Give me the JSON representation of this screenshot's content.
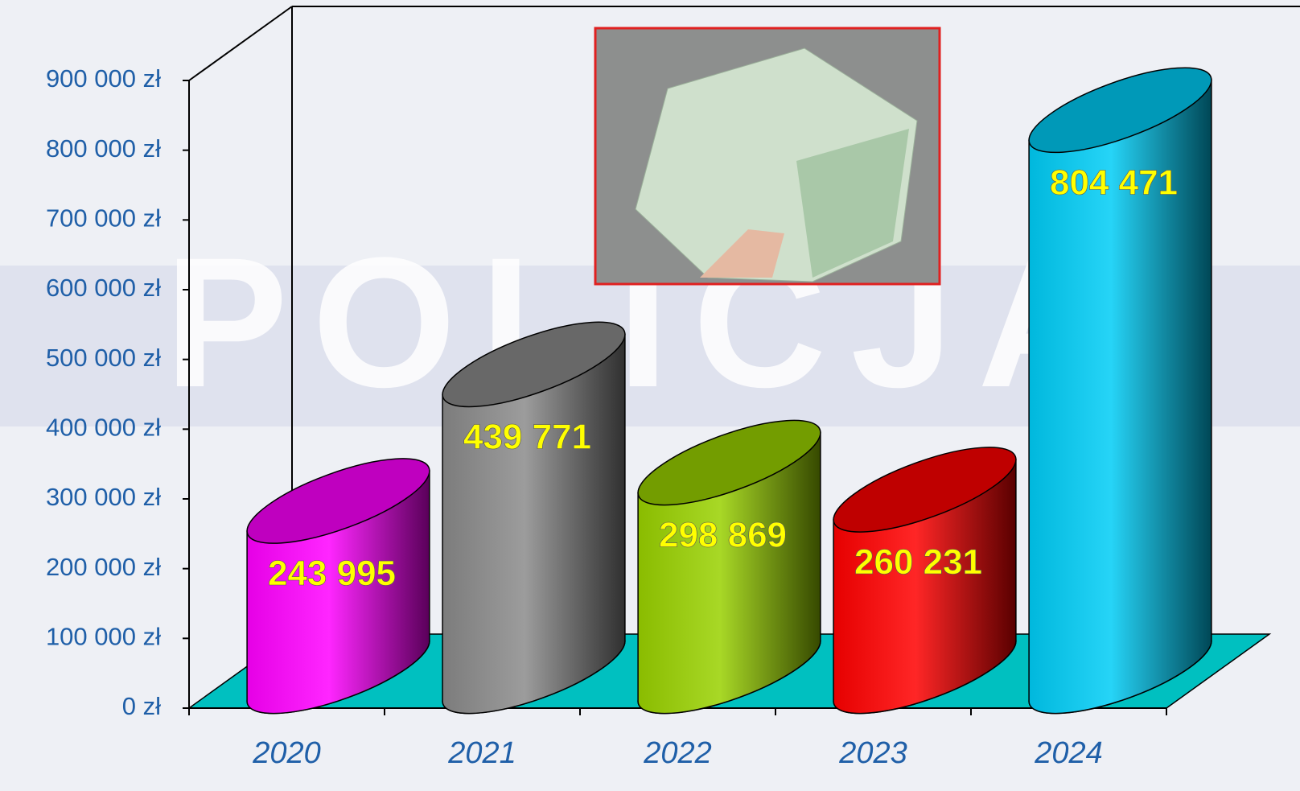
{
  "chart_data": {
    "type": "cylinder-bar",
    "background_text": "POLICJA",
    "categories": [
      "2020",
      "2021",
      "2022",
      "2023",
      "2024"
    ],
    "values": [
      243995,
      439771,
      298869,
      260231,
      804471
    ],
    "value_labels": [
      "243 995",
      "439 771",
      "298 869",
      "260 231",
      "804 471"
    ],
    "colors": [
      "#ff00ff",
      "#8a8a8a",
      "#99d100",
      "#ff0000",
      "#00ccf5"
    ],
    "floor_color": "#00c0c0",
    "ylim": [
      0,
      900000
    ],
    "yticks": [
      {
        "value": 0,
        "label": "0 zł"
      },
      {
        "value": 100000,
        "label": "100 000 zł"
      },
      {
        "value": 200000,
        "label": "200 000 zł"
      },
      {
        "value": 300000,
        "label": "300 000 zł"
      },
      {
        "value": 400000,
        "label": "400 000 zł"
      },
      {
        "value": 500000,
        "label": "500 000 zł"
      },
      {
        "value": 600000,
        "label": "600 000 zł"
      },
      {
        "value": 700000,
        "label": "700 000 zł"
      },
      {
        "value": 800000,
        "label": "800 000 zł"
      },
      {
        "value": 900000,
        "label": "900 000 zł"
      }
    ]
  }
}
